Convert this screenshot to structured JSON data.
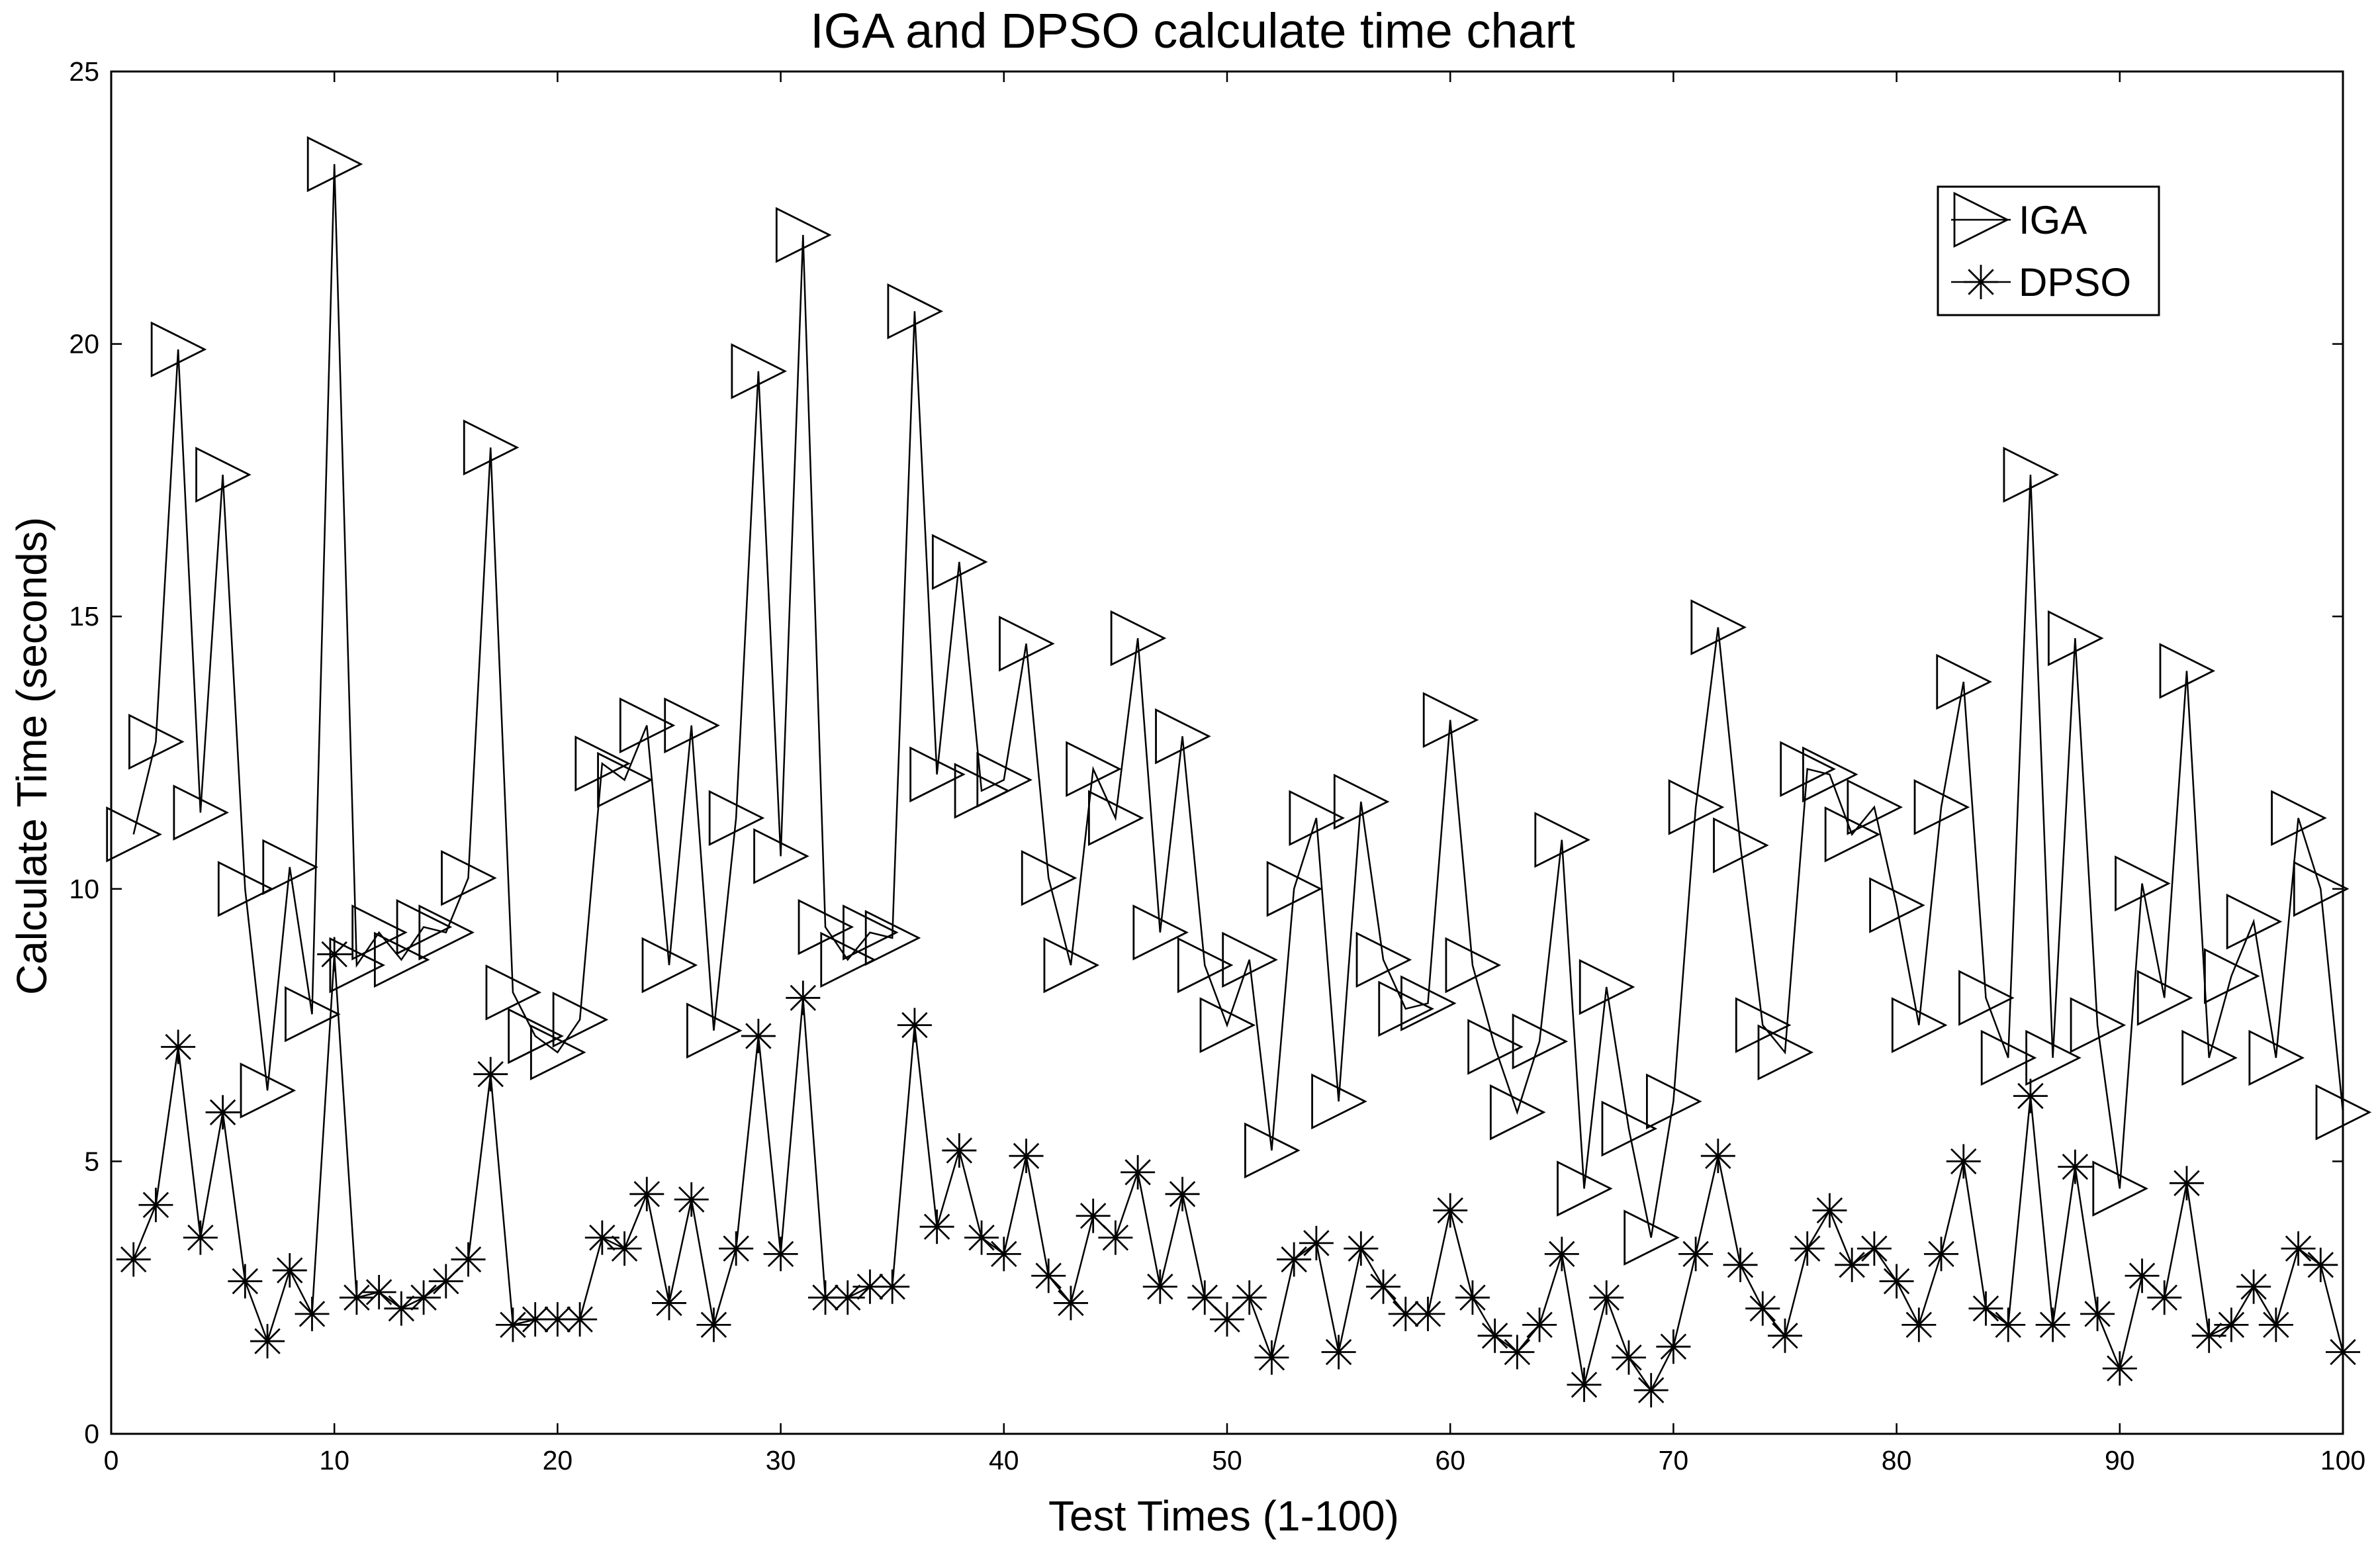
{
  "chart_data": {
    "type": "line",
    "title": "IGA and DPSO calculate time chart",
    "xlabel": "Test Times (1-100)",
    "ylabel": "Calculate Time (seconds)",
    "xlim": [
      0,
      100
    ],
    "ylim": [
      0,
      25
    ],
    "xticks": [
      0,
      10,
      20,
      30,
      40,
      50,
      60,
      70,
      80,
      90,
      100
    ],
    "yticks": [
      0,
      5,
      10,
      15,
      20,
      25
    ],
    "grid": false,
    "legend_position": "top-right",
    "x": [
      1,
      2,
      3,
      4,
      5,
      6,
      7,
      8,
      9,
      10,
      11,
      12,
      13,
      14,
      15,
      16,
      17,
      18,
      19,
      20,
      21,
      22,
      23,
      24,
      25,
      26,
      27,
      28,
      29,
      30,
      31,
      32,
      33,
      34,
      35,
      36,
      37,
      38,
      39,
      40,
      41,
      42,
      43,
      44,
      45,
      46,
      47,
      48,
      49,
      50,
      51,
      52,
      53,
      54,
      55,
      56,
      57,
      58,
      59,
      60,
      61,
      62,
      63,
      64,
      65,
      66,
      67,
      68,
      69,
      70,
      71,
      72,
      73,
      74,
      75,
      76,
      77,
      78,
      79,
      80,
      81,
      82,
      83,
      84,
      85,
      86,
      87,
      88,
      89,
      90,
      91,
      92,
      93,
      94,
      95,
      96,
      97,
      98,
      99,
      100
    ],
    "series": [
      {
        "name": "IGA",
        "marker": "triangle-right",
        "values": [
          11.0,
          12.7,
          19.9,
          11.4,
          17.6,
          10.0,
          6.3,
          10.4,
          7.7,
          23.3,
          8.6,
          9.2,
          8.7,
          9.3,
          9.2,
          10.2,
          18.1,
          8.1,
          7.3,
          7.0,
          7.6,
          12.3,
          12.0,
          13.0,
          8.6,
          13.0,
          7.4,
          11.3,
          19.5,
          10.6,
          22.0,
          9.3,
          8.7,
          9.2,
          9.1,
          20.6,
          12.1,
          16.0,
          11.8,
          12.0,
          14.5,
          10.2,
          8.6,
          12.2,
          11.3,
          14.6,
          9.2,
          12.8,
          8.6,
          7.5,
          8.7,
          5.2,
          10.0,
          11.3,
          6.1,
          11.6,
          8.7,
          7.8,
          7.9,
          13.1,
          8.6,
          7.1,
          5.9,
          7.2,
          10.9,
          4.5,
          8.2,
          5.6,
          3.6,
          6.1,
          11.5,
          14.8,
          10.8,
          7.5,
          7.0,
          12.2,
          12.1,
          11.0,
          11.5,
          9.7,
          7.5,
          11.5,
          13.8,
          8.0,
          6.9,
          17.6,
          6.9,
          14.6,
          7.5,
          4.5,
          10.1,
          8.0,
          14.0,
          6.9,
          8.4,
          9.4,
          6.9,
          11.3,
          10.0,
          5.9
        ]
      },
      {
        "name": "DPSO",
        "marker": "asterisk",
        "values": [
          3.2,
          4.2,
          7.1,
          3.6,
          5.9,
          2.8,
          1.7,
          3.0,
          2.2,
          8.8,
          2.5,
          2.6,
          2.3,
          2.5,
          2.8,
          3.2,
          6.6,
          2.0,
          2.1,
          2.1,
          2.1,
          3.6,
          3.4,
          4.4,
          2.4,
          4.3,
          2.0,
          3.4,
          7.3,
          3.3,
          8.0,
          2.5,
          2.5,
          2.7,
          2.7,
          7.5,
          3.8,
          5.2,
          3.6,
          3.3,
          5.1,
          2.9,
          2.4,
          4.0,
          3.6,
          4.8,
          2.7,
          4.4,
          2.5,
          2.1,
          2.5,
          1.4,
          3.2,
          3.5,
          1.5,
          3.4,
          2.7,
          2.2,
          2.2,
          4.1,
          2.5,
          1.8,
          1.5,
          2.0,
          3.3,
          0.9,
          2.5,
          1.4,
          0.8,
          1.6,
          3.3,
          5.1,
          3.1,
          2.3,
          1.8,
          3.4,
          4.1,
          3.1,
          3.4,
          2.8,
          2.0,
          3.3,
          5.0,
          2.3,
          2.0,
          6.2,
          2.0,
          4.9,
          2.2,
          1.2,
          2.9,
          2.5,
          4.6,
          1.8,
          2.0,
          2.7,
          2.0,
          3.4,
          3.1,
          1.5
        ]
      }
    ]
  }
}
